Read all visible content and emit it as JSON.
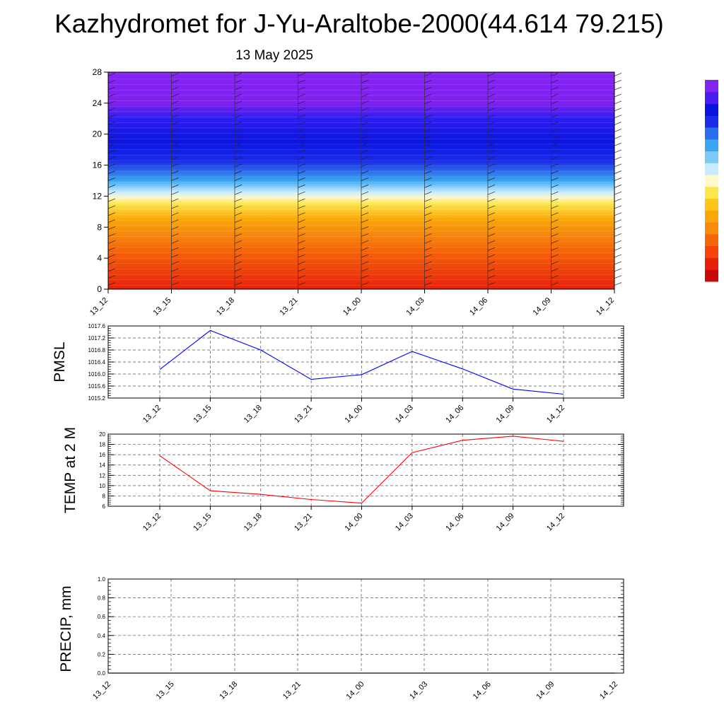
{
  "title": "Kazhydromet for J-Yu-Araltobe-2000(44.614 79.215)",
  "subtitle": "13 May 2025",
  "time_labels": [
    "13_12",
    "13_15",
    "13_18",
    "13_21",
    "14_00",
    "14_03",
    "14_06",
    "14_09",
    "14_12"
  ],
  "colors": {
    "pressure_line": "#0000ff",
    "temp_line": "#ff0000",
    "precip_line": "#006400"
  },
  "chart_data": [
    {
      "type": "heatmap",
      "name": "temperature-cross-section",
      "x": [
        "13_12",
        "13_15",
        "13_18",
        "13_21",
        "14_00",
        "14_03",
        "14_06",
        "14_09",
        "14_12"
      ],
      "ylim": [
        0,
        28
      ],
      "yticks": [
        0,
        4,
        8,
        12,
        16,
        20,
        24,
        28
      ],
      "colorscale_stops": [
        {
          "level": 0,
          "color": "#e8200a"
        },
        {
          "level": 5,
          "color": "#f5650a"
        },
        {
          "level": 9,
          "color": "#f9a70a"
        },
        {
          "level": 11,
          "color": "#fde64a"
        },
        {
          "level": 11.8,
          "color": "#fff8c8"
        },
        {
          "level": 12.5,
          "color": "#c8ecff"
        },
        {
          "level": 14,
          "color": "#3aa6f0"
        },
        {
          "level": 16.5,
          "color": "#1a2ce8"
        },
        {
          "level": 19,
          "color": "#0a14e0"
        },
        {
          "level": 22,
          "color": "#2c1ef0"
        },
        {
          "level": 24,
          "color": "#8020f0"
        },
        {
          "level": 28,
          "color": "#8424f2"
        }
      ],
      "colorbar_colors": [
        "#c80a0a",
        "#e8200a",
        "#f5450a",
        "#f5650a",
        "#f98a0a",
        "#f9a70a",
        "#fdc41a",
        "#fde64a",
        "#fff8c8",
        "#c8ecff",
        "#7ccaf5",
        "#3aa6f0",
        "#2a70ee",
        "#1a2ce8",
        "#0a14e0",
        "#4a1ef0",
        "#8424f2"
      ]
    },
    {
      "type": "line",
      "name": "PMSL",
      "ylabel": "PMSL",
      "ylim": [
        1015.2,
        1017.6
      ],
      "yticks": [
        1015.2,
        1015.6,
        1016.0,
        1016.4,
        1016.8,
        1017.2,
        1017.6
      ],
      "ytick_labels": [
        "1015.2",
        "1015.6",
        "1016.0",
        "1016.4",
        "1016.8",
        "1017.2",
        "1017.6"
      ],
      "x": [
        "13_12",
        "13_15",
        "13_18",
        "13_21",
        "14_00",
        "14_03",
        "14_06",
        "14_09",
        "14_12"
      ],
      "series": [
        {
          "values": [
            1016.15,
            1017.45,
            1016.8,
            1015.82,
            1015.98,
            1016.75,
            1016.17,
            1015.5,
            1015.33
          ]
        }
      ]
    },
    {
      "type": "line",
      "name": "TEMP",
      "ylabel": "TEMP at 2 M",
      "ylim": [
        6,
        20
      ],
      "yticks": [
        6,
        8,
        10,
        12,
        14,
        16,
        18,
        20
      ],
      "ytick_labels": [
        "6",
        "8",
        "10",
        "12",
        "14",
        "16",
        "18",
        "20"
      ],
      "x": [
        "13_12",
        "13_15",
        "13_18",
        "13_21",
        "14_00",
        "14_03",
        "14_06",
        "14_09",
        "14_12"
      ],
      "series": [
        {
          "values": [
            15.8,
            9.0,
            8.3,
            7.3,
            6.6,
            16.4,
            18.8,
            19.6,
            18.6
          ]
        }
      ]
    },
    {
      "type": "line",
      "name": "PRECIP",
      "ylabel": "PRECIP, mm",
      "ylim": [
        0.0,
        1.0
      ],
      "yticks": [
        0.0,
        0.2,
        0.4,
        0.6,
        0.8,
        1.0
      ],
      "ytick_labels": [
        "0.0",
        "0.2",
        "0.4",
        "0.6",
        "0.8",
        "1.0"
      ],
      "x": [
        "13_12",
        "13_15",
        "13_18",
        "13_21",
        "14_00",
        "14_03",
        "14_06",
        "14_09",
        "14_12"
      ],
      "series": [
        {
          "values": [
            0,
            0,
            0,
            0,
            0,
            0,
            0,
            0,
            0
          ]
        }
      ]
    }
  ]
}
